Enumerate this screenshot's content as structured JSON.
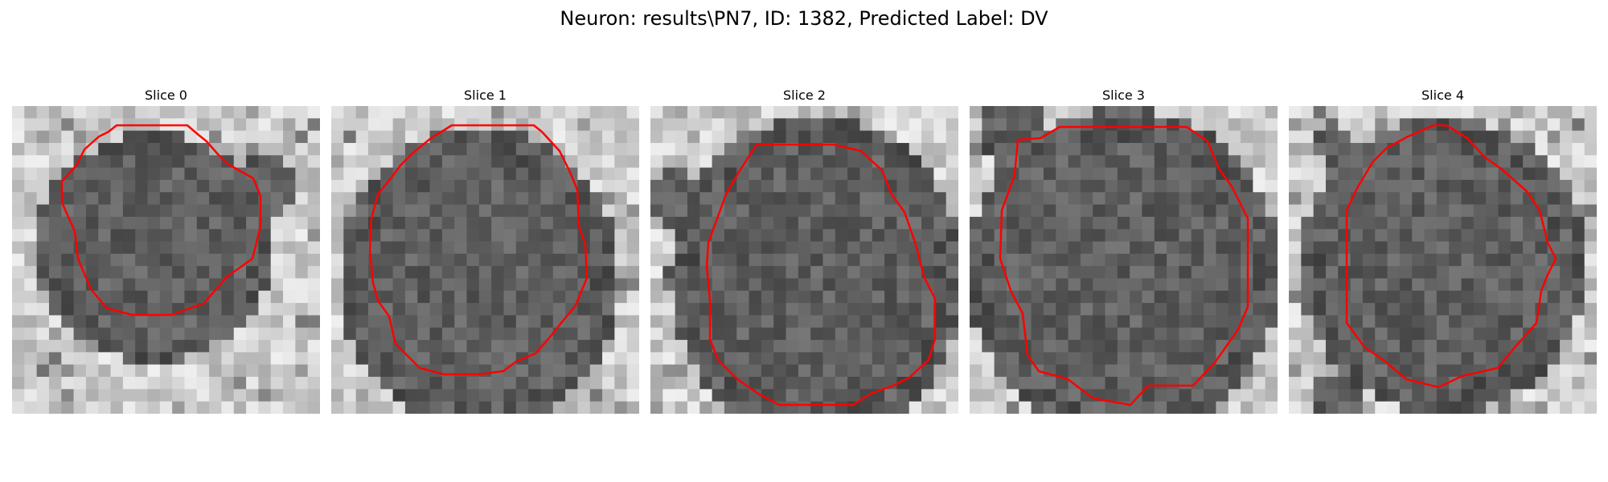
{
  "figure": {
    "title": "Neuron: results\\PN7, ID: 1382, Predicted Label: DV"
  },
  "colors": {
    "contour": "#ff0000",
    "background": "#ffffff"
  },
  "panels": [
    {
      "title": "Slice 0"
    },
    {
      "title": "Slice 1"
    },
    {
      "title": "Slice 2"
    },
    {
      "title": "Slice 3"
    },
    {
      "title": "Slice 4"
    }
  ]
}
